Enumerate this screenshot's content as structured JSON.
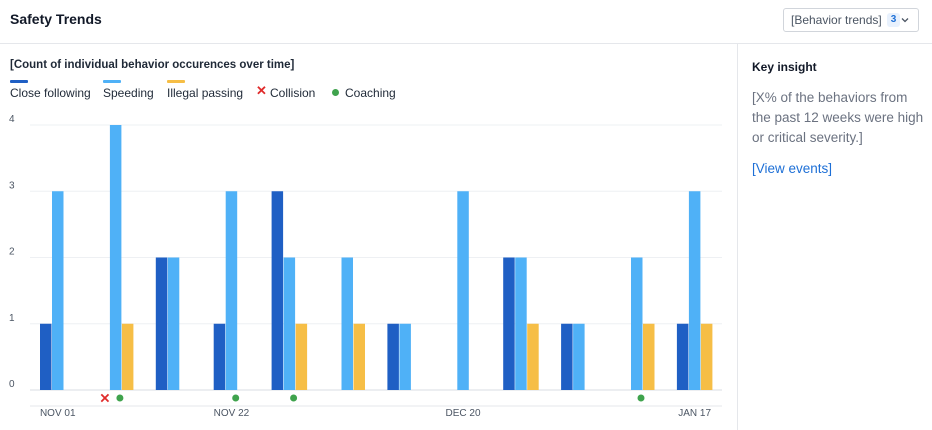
{
  "header": {
    "title": "Safety Trends",
    "dropdown": {
      "label": "[Behavior trends]",
      "count": "3",
      "icon": "chevron-down-icon"
    }
  },
  "chart_data": {
    "type": "bar",
    "title": "[Count of individual behavior occurences over time]",
    "y_ticks": [
      "0",
      "1",
      "2",
      "3",
      "4"
    ],
    "ylim": [
      0,
      4
    ],
    "x_tick_labels": [
      {
        "label": "NOV 01",
        "index": 0
      },
      {
        "label": "NOV 22",
        "index": 3
      },
      {
        "label": "DEC 20",
        "index": 7
      },
      {
        "label": "JAN 17",
        "index": 11
      }
    ],
    "grid": true,
    "legend_position": "top-left",
    "series": [
      {
        "name": "Close following",
        "color": "#1f5fc4",
        "values": [
          1,
          0,
          2,
          1,
          3,
          0,
          1,
          0,
          2,
          1,
          0,
          1
        ]
      },
      {
        "name": "Speeding",
        "color": "#4fb1f7",
        "values": [
          3,
          4,
          2,
          3,
          2,
          2,
          1,
          3,
          2,
          1,
          2,
          3
        ]
      },
      {
        "name": "Illegal passing",
        "color": "#f6be46",
        "values": [
          0,
          1,
          0,
          0,
          1,
          1,
          0,
          0,
          1,
          0,
          1,
          1
        ]
      }
    ],
    "markers": [
      {
        "name": "Collision",
        "symbol": "x",
        "color": "#e02b2b",
        "points": [
          1
        ]
      },
      {
        "name": "Coaching",
        "symbol": "dot",
        "color": "#3fa34d",
        "points": [
          1,
          3,
          4,
          10
        ]
      }
    ]
  },
  "sidebar": {
    "title": "Key insight",
    "text": "[X% of the behaviors from the past 12 weeks were high or critical severity.]",
    "link": "[View events]"
  }
}
